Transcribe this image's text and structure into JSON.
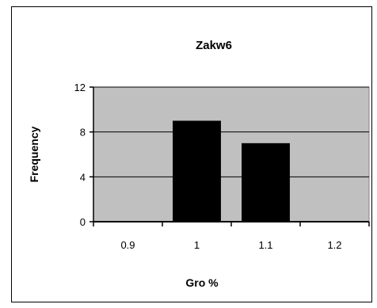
{
  "chart_data": {
    "type": "bar",
    "title": "Zakw6",
    "xlabel": "Gro %",
    "ylabel": "Frequency",
    "categories": [
      "0.9",
      "1",
      "1.1",
      "1.2"
    ],
    "values": [
      0,
      9,
      7,
      0
    ],
    "yticks": [
      "0",
      "4",
      "8",
      "12"
    ],
    "ylim": [
      0,
      12
    ],
    "grid": true,
    "legend": "none",
    "colors": {
      "plot_bg": "#c0c0c0",
      "bar": "#000000",
      "grid": "#000000"
    }
  }
}
